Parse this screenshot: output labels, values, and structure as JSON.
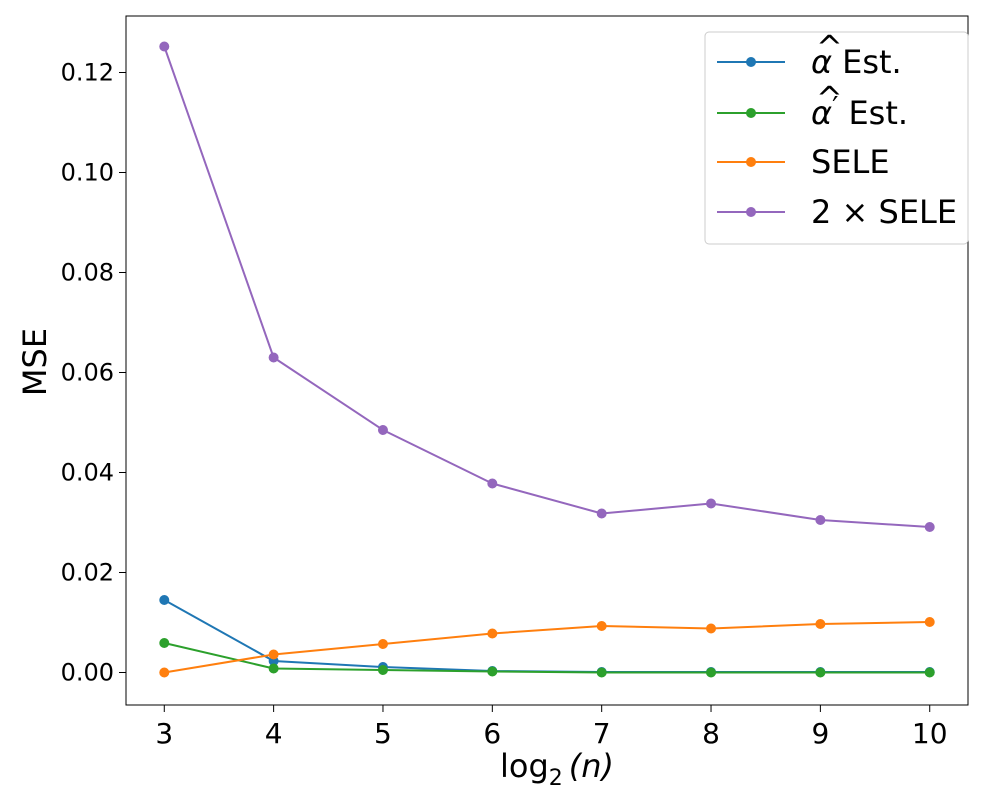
{
  "chart_data": {
    "type": "line",
    "title": "",
    "xlabel_base": "log",
    "xlabel_sub": "2",
    "xlabel_arg": "(n)",
    "ylabel": "MSE",
    "x": [
      3,
      4,
      5,
      6,
      7,
      8,
      9,
      10
    ],
    "xlim": [
      2.65,
      10.35
    ],
    "ylim": [
      -0.0065,
      0.1313
    ],
    "xticks": [
      "3",
      "4",
      "5",
      "6",
      "7",
      "8",
      "9",
      "10"
    ],
    "yticks": [
      0.0,
      0.02,
      0.04,
      0.06,
      0.08,
      0.1,
      0.12
    ],
    "ytick_labels": [
      "0.00",
      "0.02",
      "0.04",
      "0.06",
      "0.08",
      "0.10",
      "0.12"
    ],
    "grid": false,
    "legend_position": "top-right",
    "series": [
      {
        "name": "α̂ Est.",
        "base": "α",
        "prime": "",
        "suffix": "Est.",
        "color": "#1f77b4",
        "values": [
          0.0145,
          0.0023,
          0.0011,
          0.0003,
          0.0001,
          0.0001,
          0.0001,
          0.0001
        ]
      },
      {
        "name": "α̂′ Est.",
        "base": "α",
        "prime": "′",
        "suffix": "Est.",
        "color": "#2ca02c",
        "values": [
          0.0059,
          0.0008,
          0.0005,
          0.0002,
          0.0,
          0.0,
          0.0,
          0.0
        ]
      },
      {
        "name": "SELE",
        "label": "SELE",
        "color": "#ff7f0e",
        "values": [
          0.0,
          0.0036,
          0.0057,
          0.0078,
          0.0093,
          0.0088,
          0.0097,
          0.0101
        ]
      },
      {
        "name": "2 × SELE",
        "label": "2 × SELE",
        "color": "#9467bd",
        "values": [
          0.1252,
          0.063,
          0.0485,
          0.0378,
          0.0318,
          0.0338,
          0.0305,
          0.0291
        ]
      }
    ]
  }
}
